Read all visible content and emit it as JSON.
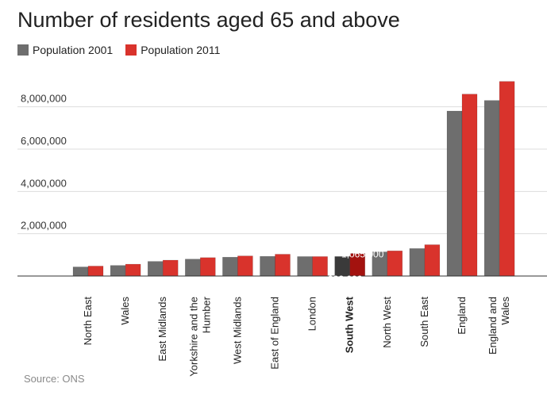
{
  "chart_data": {
    "type": "bar",
    "title": "Number of residents aged 65 and above",
    "source": "Source: ONS",
    "series": [
      {
        "name": "Population 2001",
        "color": "#6e6e6e",
        "values": [
          430000,
          500000,
          690000,
          800000,
          890000,
          930000,
          920000,
          922000,
          1140000,
          1300000,
          7800000,
          8300000
        ]
      },
      {
        "name": "Population 2011",
        "color": "#d9332c",
        "values": [
          470000,
          560000,
          750000,
          870000,
          950000,
          1030000,
          920000,
          1065000,
          1190000,
          1480000,
          8600000,
          9200000
        ]
      }
    ],
    "highlight_colors": [
      "#3a3a3a",
      "#a3120f"
    ],
    "categories": [
      [
        "North East"
      ],
      [
        "Wales"
      ],
      [
        "East Midlands"
      ],
      [
        "Yorkshire and the",
        "Humber"
      ],
      [
        "West Midlands"
      ],
      [
        "East of England"
      ],
      [
        "London"
      ],
      [
        "South West"
      ],
      [
        "North West"
      ],
      [
        "South East"
      ],
      [
        "England"
      ],
      [
        "England and",
        "Wales"
      ]
    ],
    "highlight_index": 7,
    "highlight_labels": [
      "1,065,000",
      "922,000"
    ],
    "yticks": [
      2000000,
      4000000,
      6000000,
      8000000
    ],
    "ytick_labels": [
      "2,000,000",
      "4,000,000",
      "6,000,000",
      "8,000,000"
    ],
    "ylim": [
      0,
      9500000
    ],
    "grid": true
  }
}
